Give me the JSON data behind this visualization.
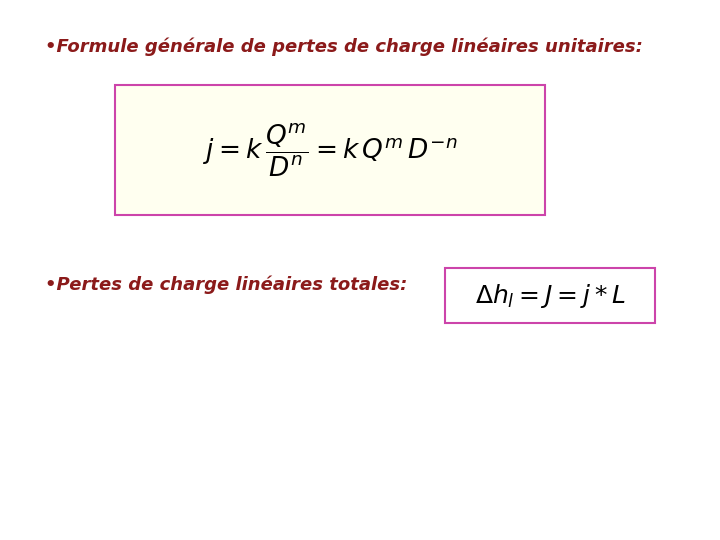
{
  "bg_color": "#ffffff",
  "bullet1": "•Formule générale de pertes de charge linéaires unitaires:",
  "bullet2": "•Pertes de charge linéaires totales:",
  "formula1": "$j = k\\,\\dfrac{Q^m}{D^n} = k\\,Q^m\\,D^{-n}$",
  "formula2": "$\\Delta h_l =J = j * L$",
  "text_color": "#8B1A1A",
  "formula1_box_bg": "#FFFFF0",
  "formula1_box_border": "#CC44AA",
  "formula2_box_bg": "#ffffff",
  "formula2_box_border": "#CC44AA",
  "formula_color": "#000000",
  "bullet_fontsize": 13,
  "formula1_fontsize": 19,
  "formula2_fontsize": 18,
  "fig_width": 7.2,
  "fig_height": 5.4,
  "dpi": 100
}
